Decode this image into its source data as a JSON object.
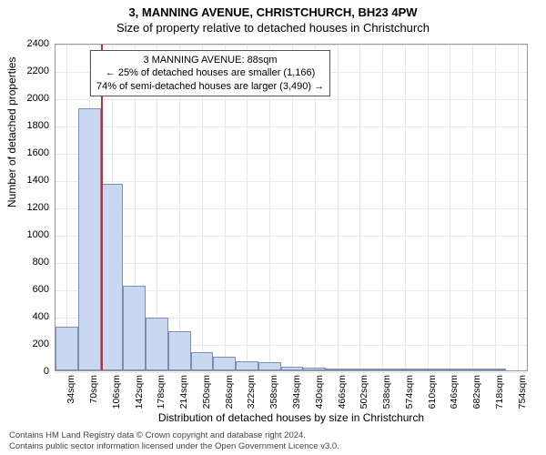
{
  "title1": "3, MANNING AVENUE, CHRISTCHURCH, BH23 4PW",
  "title2": "Size of property relative to detached houses in Christchurch",
  "ylabel": "Number of detached properties",
  "xlabel": "Distribution of detached houses by size in Christchurch",
  "chart": {
    "type": "histogram",
    "background_color": "#ffffff",
    "grid_color": "#e8e8e8",
    "bar_fill": "#c9d8f0",
    "bar_border": "#7a8fb5",
    "marker_color": "#d62728",
    "marker_sqm": 88,
    "ylim_max": 2400,
    "ytick_step": 200,
    "x_min_sqm": 16,
    "x_max_sqm": 772,
    "x_tick_start": 34,
    "x_tick_step": 36,
    "x_tick_count": 21,
    "x_tick_unit": "sqm",
    "bin_width_sqm": 36,
    "bin_start_sqm": 16,
    "bars": [
      320,
      1920,
      1370,
      620,
      390,
      285,
      135,
      100,
      65,
      60,
      30,
      20,
      12,
      8,
      5,
      3,
      2,
      1,
      1,
      1,
      0
    ],
    "info_box": {
      "border": "#555555",
      "background": "#ffffff",
      "line1": "3 MANNING AVENUE: 88sqm",
      "line2": "← 25% of detached houses are smaller (1,166)",
      "line3": "74% of semi-detached houses are larger (3,490) →"
    }
  },
  "credits": {
    "line1": "Contains HM Land Registry data © Crown copyright and database right 2024.",
    "line2": "Contains public sector information licensed under the Open Government Licence v3.0."
  }
}
